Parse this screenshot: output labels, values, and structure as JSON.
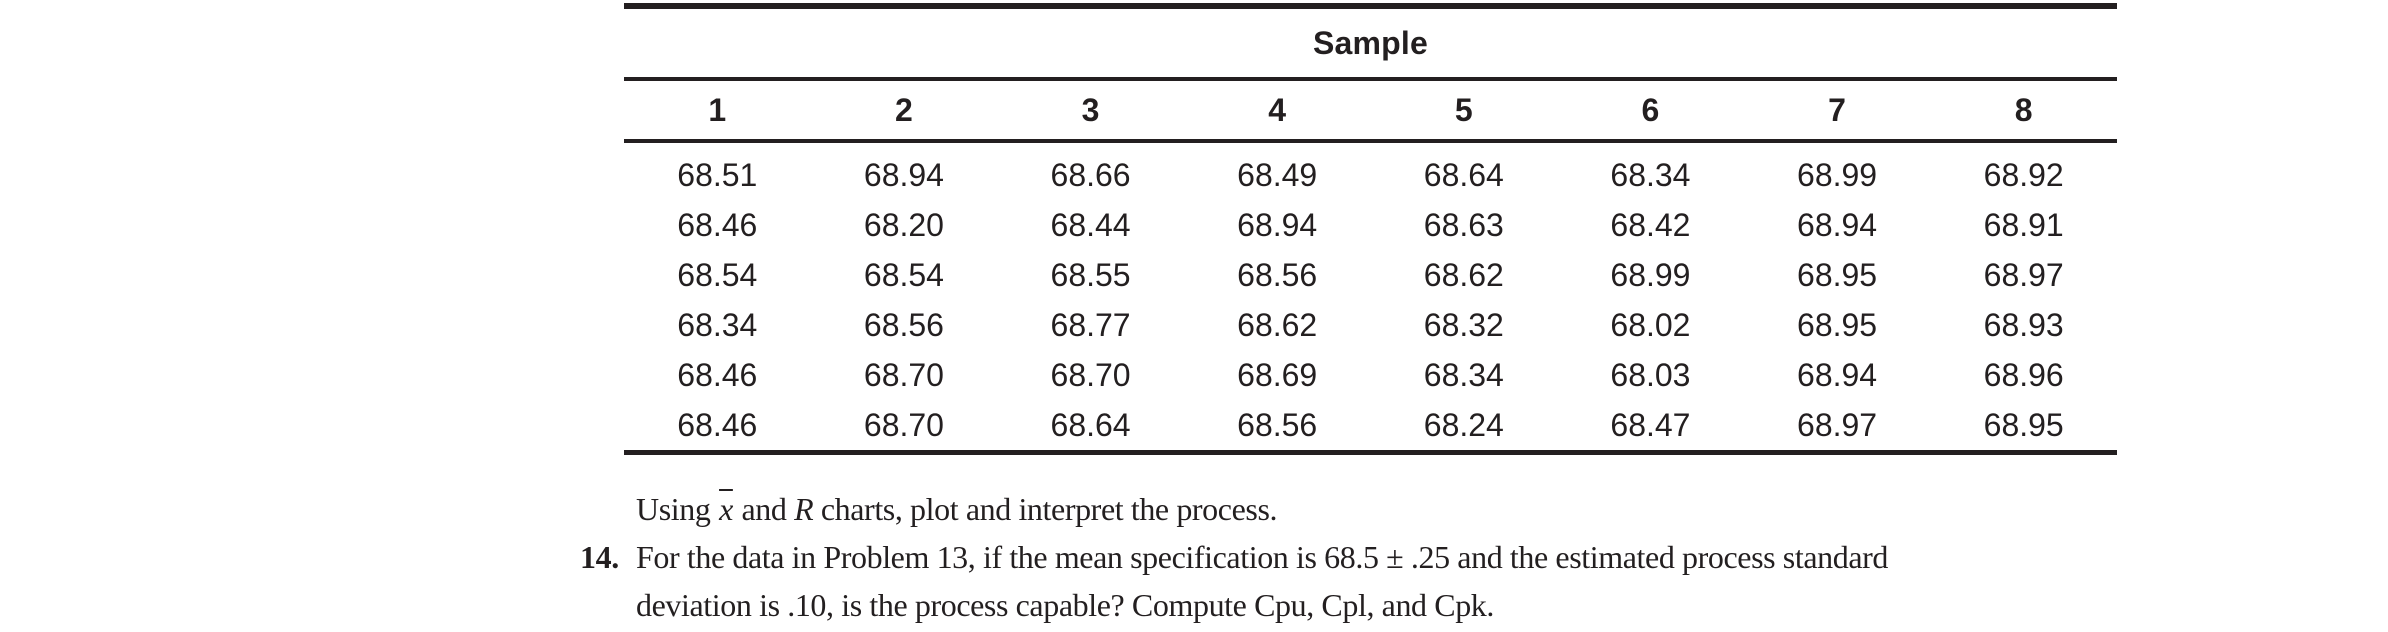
{
  "page": {
    "background": "#ffffff",
    "text_color": "#231f20"
  },
  "table": {
    "title": "Sample",
    "column_headers": [
      "1",
      "2",
      "3",
      "4",
      "5",
      "6",
      "7",
      "8"
    ],
    "rows": [
      [
        "68.51",
        "68.94",
        "68.66",
        "68.49",
        "68.64",
        "68.34",
        "68.99",
        "68.92"
      ],
      [
        "68.46",
        "68.20",
        "68.44",
        "68.94",
        "68.63",
        "68.42",
        "68.94",
        "68.91"
      ],
      [
        "68.54",
        "68.54",
        "68.55",
        "68.56",
        "68.62",
        "68.99",
        "68.95",
        "68.97"
      ],
      [
        "68.34",
        "68.56",
        "68.77",
        "68.62",
        "68.32",
        "68.02",
        "68.95",
        "68.93"
      ],
      [
        "68.46",
        "68.70",
        "68.70",
        "68.69",
        "68.34",
        "68.03",
        "68.94",
        "68.96"
      ],
      [
        "68.46",
        "68.70",
        "68.64",
        "68.56",
        "68.24",
        "68.47",
        "68.97",
        "68.95"
      ]
    ]
  },
  "text": {
    "closing_sentence": {
      "prefix": "Using ",
      "xbar_symbol": "x",
      "middle": " and ",
      "r_symbol": "R",
      "suffix": " charts, plot and interpret the process."
    },
    "problem": {
      "number": "14.",
      "line1": "For the data in Problem 13, if the mean specification is 68.5 ± .25 and the estimated process standard",
      "line2": "deviation is .10, is the process capable? Compute Cpu, Cpl, and Cpk."
    }
  }
}
